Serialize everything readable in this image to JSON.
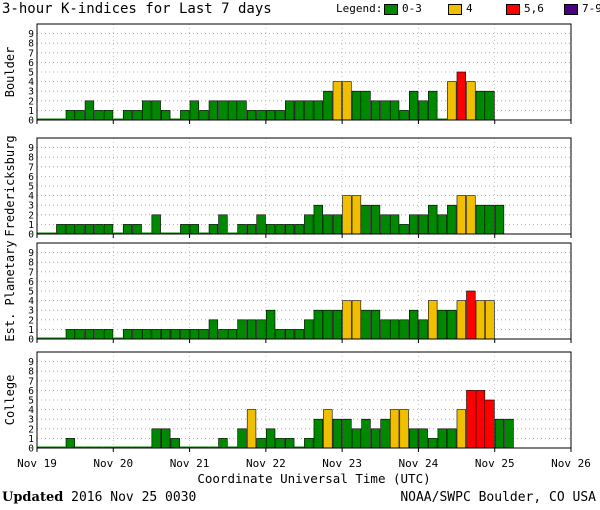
{
  "title": "3-hour K-indices for Last 7 days",
  "legend": {
    "label": "Legend:",
    "items": [
      {
        "label": "0-3",
        "color": "#008800"
      },
      {
        "label": "4",
        "color": "#f0c000"
      },
      {
        "label": "5,6",
        "color": "#ff0000"
      },
      {
        "label": "7-9",
        "color": "#4b0080"
      }
    ]
  },
  "footer": {
    "updated_label": "Updated",
    "updated_value": "2016 Nov 25 0030",
    "credit": "NOAA/SWPC Boulder, CO USA"
  },
  "chart_data": {
    "type": "bar",
    "xlabel": "Coordinate Universal Time (UTC)",
    "x_tick_labels": [
      "Nov 19",
      "Nov 20",
      "Nov 21",
      "Nov 22",
      "Nov 23",
      "Nov 24",
      "Nov 25",
      "Nov 26"
    ],
    "y_ticks": [
      0,
      1,
      2,
      3,
      4,
      5,
      6,
      7,
      8,
      9
    ],
    "ylim": [
      0,
      9
    ],
    "grid": "horizontal dotted",
    "color_scale": [
      {
        "range": "0-3",
        "color": "#008800"
      },
      {
        "range": "4",
        "color": "#f0c000"
      },
      {
        "range": "5,6",
        "color": "#ff0000"
      },
      {
        "range": "7-9",
        "color": "#4b0080"
      }
    ],
    "panels": [
      {
        "name": "Boulder",
        "values": [
          0,
          0,
          0,
          1,
          1,
          2,
          1,
          1,
          0,
          1,
          1,
          2,
          2,
          1,
          0,
          1,
          2,
          1,
          2,
          2,
          2,
          2,
          1,
          1,
          1,
          1,
          2,
          2,
          2,
          2,
          3,
          4,
          4,
          3,
          3,
          2,
          2,
          2,
          1,
          3,
          2,
          3,
          0,
          4,
          5,
          4,
          3,
          3,
          null,
          null,
          null,
          null,
          null,
          null,
          null,
          null
        ]
      },
      {
        "name": "Fredericksburg",
        "values": [
          0,
          0,
          1,
          1,
          1,
          1,
          1,
          1,
          0,
          1,
          1,
          0,
          2,
          0,
          0,
          1,
          1,
          0,
          1,
          2,
          0,
          1,
          1,
          2,
          1,
          1,
          1,
          1,
          2,
          3,
          2,
          2,
          4,
          4,
          3,
          3,
          2,
          2,
          1,
          2,
          2,
          3,
          2,
          3,
          4,
          4,
          3,
          3,
          3,
          null,
          null,
          null,
          null,
          null,
          null,
          null
        ]
      },
      {
        "name": "Est. Planetary",
        "values": [
          0,
          0,
          0,
          1,
          1,
          1,
          1,
          1,
          0,
          1,
          1,
          1,
          1,
          1,
          1,
          1,
          1,
          1,
          2,
          1,
          1,
          2,
          2,
          2,
          3,
          1,
          1,
          1,
          2,
          3,
          3,
          3,
          4,
          4,
          3,
          3,
          2,
          2,
          2,
          3,
          2,
          4,
          3,
          3,
          4,
          5,
          4,
          4,
          null,
          null,
          null,
          null,
          null,
          null,
          null,
          null
        ]
      },
      {
        "name": "College",
        "values": [
          0,
          0,
          0,
          1,
          0,
          0,
          0,
          0,
          0,
          0,
          0,
          0,
          2,
          2,
          1,
          0,
          0,
          0,
          0,
          1,
          0,
          2,
          4,
          1,
          2,
          1,
          1,
          0,
          1,
          3,
          4,
          3,
          3,
          2,
          3,
          2,
          3,
          4,
          4,
          2,
          2,
          1,
          2,
          2,
          4,
          6,
          6,
          5,
          3,
          3,
          null,
          null,
          null,
          null,
          null,
          null
        ]
      }
    ]
  }
}
